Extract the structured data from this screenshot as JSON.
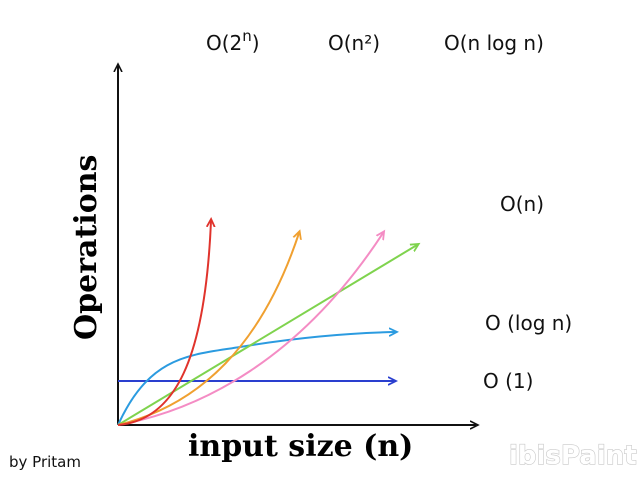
{
  "diagram": {
    "y_axis_label": "Operations",
    "x_axis_label": "input size (n)",
    "credit": "by Pritam",
    "watermark": "ibisPaint"
  },
  "curves": [
    {
      "id": "exponential",
      "label_base": "O(2",
      "label_sup": "n",
      "label_close": ")",
      "color": "#e0332c"
    },
    {
      "id": "quadratic",
      "label": "O(n²)",
      "color": "#f0a030"
    },
    {
      "id": "nlogn",
      "label": "O(n log n)",
      "color": "#f48cc4"
    },
    {
      "id": "linear",
      "label": "O(n)",
      "color": "#7fd34e"
    },
    {
      "id": "logarithmic",
      "label": "O (log n)",
      "color": "#2b9be0"
    },
    {
      "id": "constant",
      "label": "O (1)",
      "color": "#2a3fcf"
    }
  ]
}
